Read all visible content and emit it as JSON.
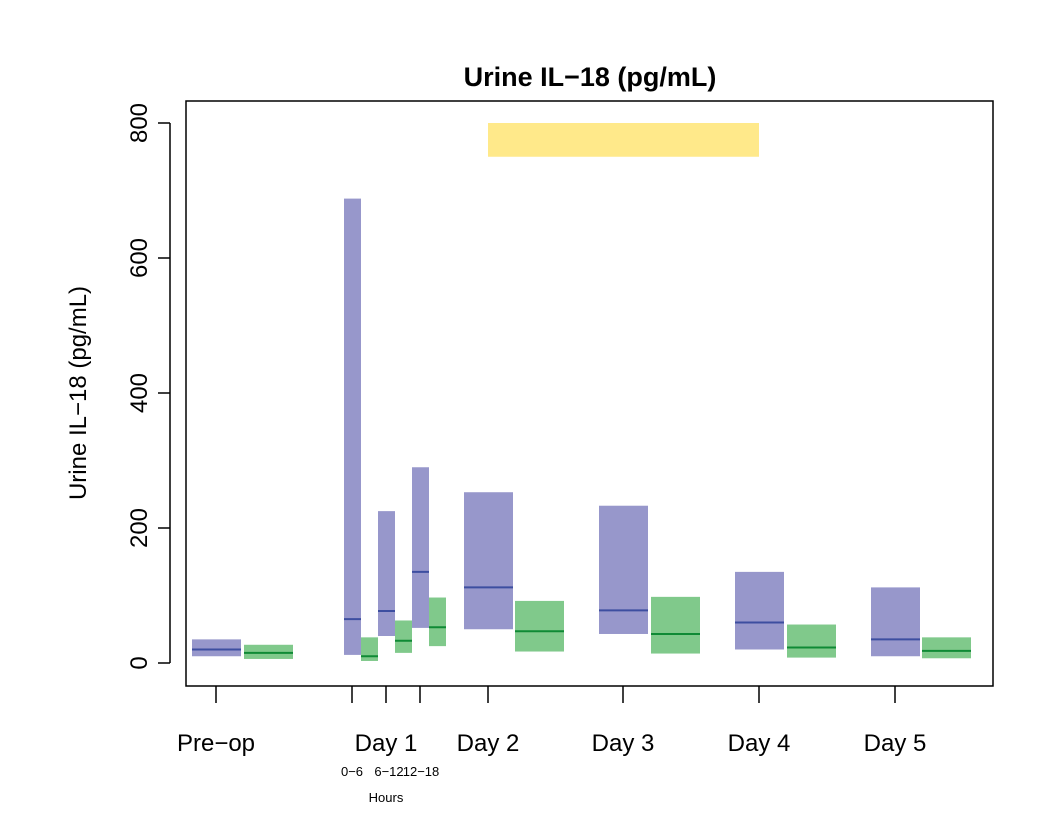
{
  "chart_data": {
    "type": "box",
    "title": "Urine IL−18 (pg/mL)",
    "ylabel": "Urine IL−18 (pg/mL)",
    "xlabel": "",
    "ylim": [
      0,
      800
    ],
    "yticks": [
      "0",
      "200",
      "400",
      "600",
      "800"
    ],
    "grid": false,
    "categories": [
      "Pre−op",
      "Day 1",
      "Day 2",
      "Day 3",
      "Day 4",
      "Day 5"
    ],
    "subcategories": [
      "0−6",
      "6−12",
      "12−18"
    ],
    "subcategory_label": "Hours",
    "highlight": {
      "from": "Day 2",
      "to": "Day 4",
      "y_range": [
        750,
        800
      ],
      "color": "#ffe98a"
    },
    "colors": {
      "blue_fill": "#9797cb",
      "blue_line": "#3d4ea0",
      "green_fill": "#80c98b",
      "green_line": "#0f8a35"
    },
    "series": [
      {
        "color": "blue",
        "boxes": [
          {
            "group": "Pre−op",
            "low": 10,
            "median": 20,
            "high": 35
          },
          {
            "group": "Day 1",
            "hours": "0−6",
            "low": 12,
            "median": 65,
            "high": 688
          },
          {
            "group": "Day 1",
            "hours": "6−12",
            "low": 40,
            "median": 77,
            "high": 225
          },
          {
            "group": "Day 1",
            "hours": "12−18",
            "low": 52,
            "median": 135,
            "high": 290
          },
          {
            "group": "Day 2",
            "low": 50,
            "median": 112,
            "high": 253
          },
          {
            "group": "Day 3",
            "low": 43,
            "median": 78,
            "high": 233
          },
          {
            "group": "Day 4",
            "low": 20,
            "median": 60,
            "high": 135
          },
          {
            "group": "Day 5",
            "low": 10,
            "median": 35,
            "high": 112
          }
        ]
      },
      {
        "color": "green",
        "boxes": [
          {
            "group": "Pre−op",
            "low": 6,
            "median": 15,
            "high": 27
          },
          {
            "group": "Day 1",
            "hours": "0−6",
            "low": 3,
            "median": 10,
            "high": 38
          },
          {
            "group": "Day 1",
            "hours": "6−12",
            "low": 15,
            "median": 33,
            "high": 63
          },
          {
            "group": "Day 1",
            "hours": "12−18",
            "low": 25,
            "median": 53,
            "high": 97
          },
          {
            "group": "Day 2",
            "low": 17,
            "median": 47,
            "high": 92
          },
          {
            "group": "Day 3",
            "low": 14,
            "median": 43,
            "high": 98
          },
          {
            "group": "Day 4",
            "low": 8,
            "median": 23,
            "high": 57
          },
          {
            "group": "Day 5",
            "low": 7,
            "median": 18,
            "high": 38
          }
        ]
      }
    ]
  }
}
